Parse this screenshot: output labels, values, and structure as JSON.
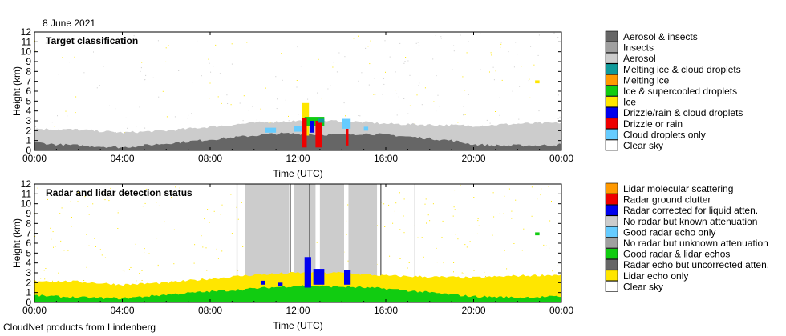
{
  "date_label": "8 June 2021",
  "footer": "CloudNet products from Lindenberg",
  "colors": {
    "aerosol_insects": "#666666",
    "insects": "#a0a0a0",
    "aerosol": "#cccccc",
    "melting_ice_cloud": "#109a9a",
    "melting_ice": "#ff9900",
    "ice_supercooled": "#11cc11",
    "ice": "#ffe600",
    "drizzle_cloud": "#0000ee",
    "drizzle_rain": "#ee0000",
    "cloud_droplets": "#66ccff",
    "clear_sky": "#ffffff",
    "lidar_molecular": "#ff9900",
    "radar_clutter": "#ee0000",
    "radar_corrected": "#0000ee",
    "no_radar_known": "#cccccc",
    "good_radar_only": "#66ccff",
    "no_radar_unknown": "#a0a0a0",
    "good_radar_lidar": "#11cc11",
    "radar_uncorrected": "#666666",
    "lidar_only": "#ffe600"
  },
  "chart_data": [
    {
      "type": "heatmap",
      "title": "Target classification",
      "xlabel": "Time (UTC)",
      "ylabel": "Height (km)",
      "x_unit": "hours UTC",
      "xlim": [
        0,
        24
      ],
      "ylim": [
        0,
        12
      ],
      "x_ticks": [
        "00:00",
        "04:00",
        "08:00",
        "12:00",
        "16:00",
        "20:00",
        "00:00"
      ],
      "y_ticks": [
        "0",
        "1",
        "2",
        "3",
        "4",
        "5",
        "6",
        "7",
        "8",
        "9",
        "10",
        "11",
        "12"
      ],
      "legend": {
        "placement": "right",
        "entries": [
          {
            "label": "Aerosol & insects",
            "color": "#666666"
          },
          {
            "label": "Insects",
            "color": "#a0a0a0"
          },
          {
            "label": "Aerosol",
            "color": "#cccccc"
          },
          {
            "label": "Melting ice & cloud droplets",
            "color": "#109a9a"
          },
          {
            "label": "Melting ice",
            "color": "#ff9900"
          },
          {
            "label": "Ice & supercooled droplets",
            "color": "#11cc11"
          },
          {
            "label": "Ice",
            "color": "#ffe600"
          },
          {
            "label": "Drizzle/rain & cloud droplets",
            "color": "#0000ee"
          },
          {
            "label": "Drizzle or rain",
            "color": "#ee0000"
          },
          {
            "label": "Cloud droplets only",
            "color": "#66ccff"
          },
          {
            "label": "Clear sky",
            "color": "#ffffff"
          }
        ]
      },
      "layers": [
        {
          "class": "Aerosol",
          "color": "#cccccc",
          "t": [
            0,
            2,
            4,
            6,
            8,
            10,
            12,
            14,
            16,
            18,
            20,
            22,
            24
          ],
          "base_km": [
            0,
            0,
            0,
            0,
            0,
            0,
            0,
            0,
            0,
            0,
            0,
            0,
            0
          ],
          "top_km": [
            2.2,
            2.1,
            1.8,
            2.0,
            2.4,
            2.8,
            3.0,
            3.0,
            2.7,
            2.6,
            2.5,
            2.7,
            2.8
          ]
        },
        {
          "class": "Aerosol & insects",
          "color": "#666666",
          "t": [
            0,
            1,
            2,
            3,
            4,
            5,
            6,
            7,
            8,
            9,
            10,
            11,
            12,
            13,
            14,
            15,
            16,
            17,
            18,
            19,
            20,
            21,
            22,
            23,
            24
          ],
          "base_km": [
            0,
            0,
            0,
            0,
            0,
            0,
            0,
            0,
            0,
            0,
            0,
            0,
            0,
            0,
            0,
            0,
            0,
            0,
            0,
            0,
            0,
            0,
            0,
            0,
            0
          ],
          "top_km": [
            0.8,
            0.6,
            0.5,
            0.4,
            0.3,
            0.5,
            0.7,
            0.9,
            1.1,
            1.3,
            1.5,
            1.7,
            1.7,
            1.6,
            1.6,
            1.7,
            1.6,
            1.4,
            1.2,
            1.0,
            0.6,
            0.5,
            0.5,
            0.5,
            0.6
          ]
        }
      ],
      "features": [
        {
          "class": "Ice",
          "color": "#ffe600",
          "t0": 12.2,
          "t1": 12.5,
          "base_km": 1.5,
          "top_km": 4.8
        },
        {
          "class": "Ice & supercooled droplets",
          "color": "#11cc11",
          "t0": 12.3,
          "t1": 13.2,
          "base_km": 2.5,
          "top_km": 3.4
        },
        {
          "class": "Drizzle or rain",
          "color": "#ee0000",
          "t0": 12.2,
          "t1": 12.4,
          "base_km": 0.3,
          "top_km": 3.3
        },
        {
          "class": "Drizzle or rain",
          "color": "#ee0000",
          "t0": 12.8,
          "t1": 13.1,
          "base_km": 0.3,
          "top_km": 3.0
        },
        {
          "class": "Drizzle or rain",
          "color": "#ee0000",
          "t0": 14.2,
          "t1": 14.3,
          "base_km": 0.5,
          "top_km": 2.2
        },
        {
          "class": "Drizzle/rain & cloud droplets",
          "color": "#0000ee",
          "t0": 12.55,
          "t1": 12.75,
          "base_km": 1.8,
          "top_km": 3.0
        },
        {
          "class": "Melting ice & cloud droplets",
          "color": "#109a9a",
          "t0": 12.9,
          "t1": 13.2,
          "base_km": 2.8,
          "top_km": 3.2
        },
        {
          "class": "Cloud droplets only",
          "color": "#66ccff",
          "t0": 10.5,
          "t1": 11.0,
          "base_km": 1.8,
          "top_km": 2.3
        },
        {
          "class": "Cloud droplets only",
          "color": "#66ccff",
          "t0": 11.8,
          "t1": 12.2,
          "base_km": 1.9,
          "top_km": 2.5
        },
        {
          "class": "Cloud droplets only",
          "color": "#66ccff",
          "t0": 14.0,
          "t1": 14.4,
          "base_km": 2.2,
          "top_km": 3.2
        },
        {
          "class": "Cloud droplets only",
          "color": "#66ccff",
          "t0": 15.0,
          "t1": 15.2,
          "base_km": 2.0,
          "top_km": 2.4
        },
        {
          "class": "Ice",
          "color": "#ffe600",
          "t0": 22.8,
          "t1": 23.0,
          "base_km": 6.8,
          "top_km": 7.1
        }
      ]
    },
    {
      "type": "heatmap",
      "title": "Radar and lidar detection status",
      "xlabel": "Time (UTC)",
      "ylabel": "Height (km)",
      "x_unit": "hours UTC",
      "xlim": [
        0,
        24
      ],
      "ylim": [
        0,
        12
      ],
      "x_ticks": [
        "00:00",
        "04:00",
        "08:00",
        "12:00",
        "16:00",
        "20:00",
        "00:00"
      ],
      "y_ticks": [
        "0",
        "1",
        "2",
        "3",
        "4",
        "5",
        "6",
        "7",
        "8",
        "9",
        "10",
        "11",
        "12"
      ],
      "legend": {
        "placement": "right",
        "entries": [
          {
            "label": "Lidar molecular scattering",
            "color": "#ff9900"
          },
          {
            "label": "Radar ground clutter",
            "color": "#ee0000"
          },
          {
            "label": "Radar corrected for liquid atten.",
            "color": "#0000ee"
          },
          {
            "label": "No radar but known attenuation",
            "color": "#cccccc"
          },
          {
            "label": "Good radar echo only",
            "color": "#66ccff"
          },
          {
            "label": "No radar but unknown attenuation",
            "color": "#a0a0a0"
          },
          {
            "label": "Good radar & lidar echos",
            "color": "#11cc11"
          },
          {
            "label": "Radar echo but uncorrected atten.",
            "color": "#666666"
          },
          {
            "label": "Lidar echo only",
            "color": "#ffe600"
          },
          {
            "label": "Clear sky",
            "color": "#ffffff"
          }
        ]
      },
      "layers": [
        {
          "class": "Lidar echo only",
          "color": "#ffe600",
          "t": [
            0,
            2,
            4,
            6,
            8,
            10,
            12,
            14,
            16,
            18,
            20,
            22,
            24
          ],
          "base_km": [
            0,
            0,
            0,
            0,
            0,
            0,
            0,
            0,
            0,
            0,
            0,
            0,
            0
          ],
          "top_km": [
            2.2,
            2.1,
            1.8,
            2.0,
            2.4,
            2.8,
            3.0,
            3.0,
            2.7,
            2.6,
            2.5,
            2.7,
            2.8
          ]
        },
        {
          "class": "Good radar & lidar echos",
          "color": "#11cc11",
          "t": [
            0,
            2,
            4,
            6,
            8,
            10,
            12,
            14,
            16,
            18,
            20,
            22,
            24
          ],
          "base_km": [
            0,
            0,
            0,
            0,
            0,
            0,
            0,
            0,
            0,
            0,
            0,
            0,
            0
          ],
          "top_km": [
            0.7,
            0.5,
            0.4,
            0.8,
            1.1,
            1.4,
            1.7,
            1.6,
            1.4,
            1.0,
            0.6,
            0.5,
            0.6
          ]
        }
      ],
      "bands": [
        {
          "class": "No radar but known attenuation",
          "color": "#cccccc",
          "t0": 9.6,
          "t1": 11.6
        },
        {
          "class": "No radar but known attenuation",
          "color": "#cccccc",
          "t0": 11.8,
          "t1": 12.8
        },
        {
          "class": "No radar but known attenuation",
          "color": "#cccccc",
          "t0": 13.0,
          "t1": 14.1
        },
        {
          "class": "No radar but known attenuation",
          "color": "#cccccc",
          "t0": 14.3,
          "t1": 15.6
        },
        {
          "class": "No radar but known attenuation",
          "color": "#cccccc",
          "t0": 9.2,
          "t1": 9.25
        },
        {
          "class": "No radar but known attenuation",
          "color": "#cccccc",
          "t0": 17.3,
          "t1": 17.35
        },
        {
          "class": "Radar echo but uncorrected atten.",
          "color": "#666666",
          "t0": 11.62,
          "t1": 11.68
        },
        {
          "class": "Radar echo but uncorrected atten.",
          "color": "#666666",
          "t0": 12.5,
          "t1": 12.55
        },
        {
          "class": "Radar echo but uncorrected atten.",
          "color": "#666666",
          "t0": 15.75,
          "t1": 15.8
        }
      ],
      "features": [
        {
          "class": "Radar corrected for liquid atten.",
          "color": "#0000ee",
          "t0": 10.3,
          "t1": 10.5,
          "base_km": 1.8,
          "top_km": 2.2
        },
        {
          "class": "Radar corrected for liquid atten.",
          "color": "#0000ee",
          "t0": 11.1,
          "t1": 11.3,
          "base_km": 1.7,
          "top_km": 2.0
        },
        {
          "class": "Radar corrected for liquid atten.",
          "color": "#0000ee",
          "t0": 12.3,
          "t1": 12.6,
          "base_km": 1.5,
          "top_km": 4.6
        },
        {
          "class": "Radar corrected for liquid atten.",
          "color": "#0000ee",
          "t0": 12.7,
          "t1": 13.2,
          "base_km": 1.8,
          "top_km": 3.4
        },
        {
          "class": "Radar corrected for liquid atten.",
          "color": "#0000ee",
          "t0": 14.1,
          "t1": 14.4,
          "base_km": 1.8,
          "top_km": 3.3
        },
        {
          "class": "Good radar & lidar echos",
          "color": "#11cc11",
          "t0": 22.8,
          "t1": 23.0,
          "base_km": 6.8,
          "top_km": 7.1
        }
      ]
    }
  ]
}
